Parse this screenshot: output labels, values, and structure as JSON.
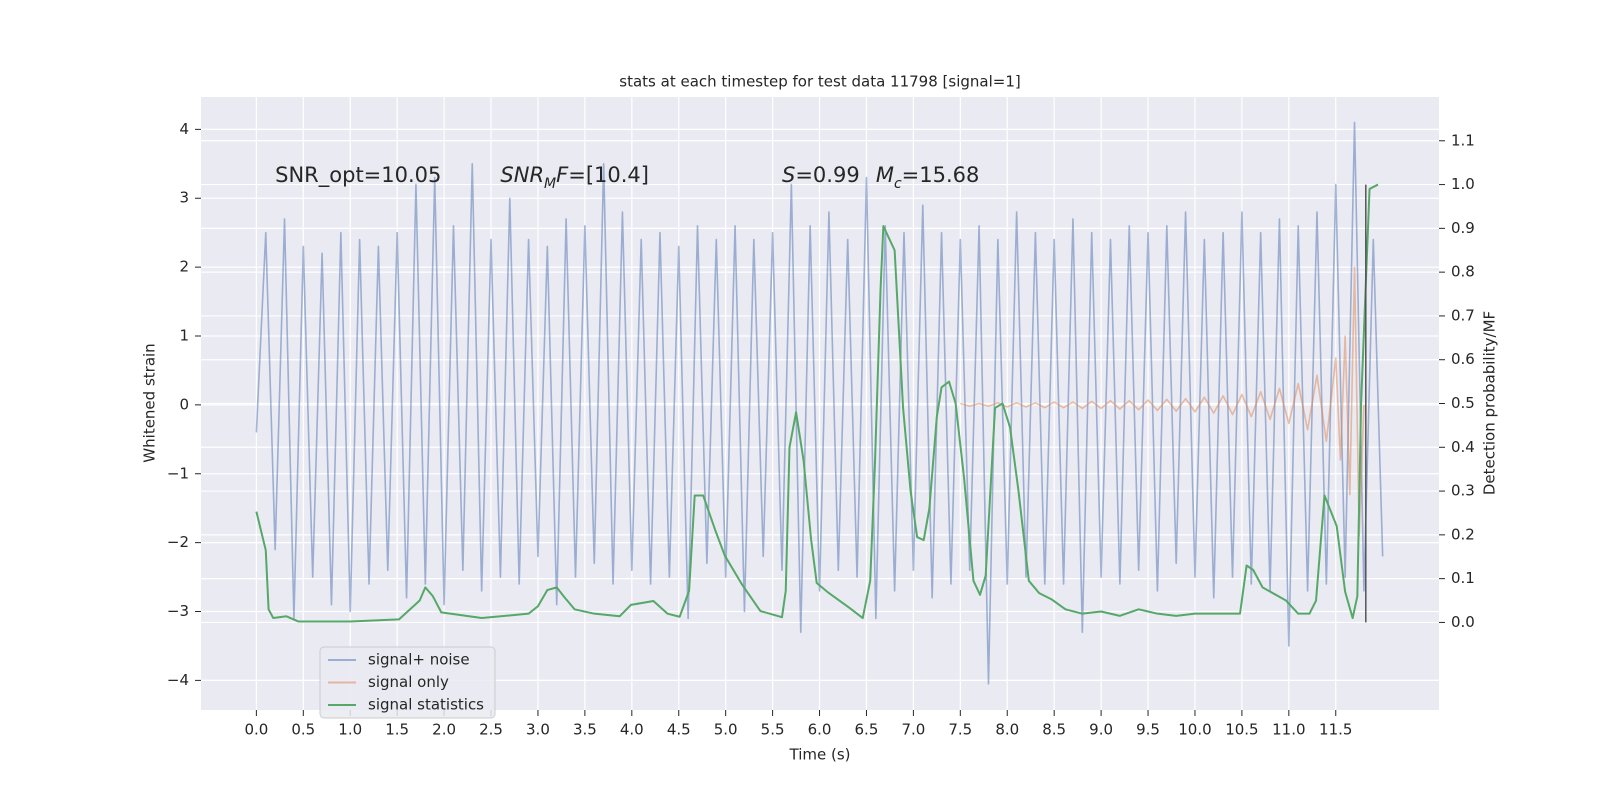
{
  "chart_data": {
    "type": "line",
    "title": "stats at each timestep for test data 11798 [signal=1]",
    "xlabel": "Time (s)",
    "ylabel": "Whitened strain",
    "y2label": "Detection probability/MF",
    "xlim": [
      -0.59,
      12.6
    ],
    "ylim": [
      -4.43,
      4.47
    ],
    "y2lim": [
      -0.2,
      1.2
    ],
    "xticks": [
      {
        "value": 0,
        "label": "0.0"
      },
      {
        "value": 0.5,
        "label": "0.5"
      },
      {
        "value": 1,
        "label": "1.0"
      },
      {
        "value": 1.5,
        "label": "1.5"
      },
      {
        "value": 2,
        "label": "2.0"
      },
      {
        "value": 2.5,
        "label": "2.5"
      },
      {
        "value": 3,
        "label": "3.0"
      },
      {
        "value": 3.5,
        "label": "3.5"
      },
      {
        "value": 4,
        "label": "4.0"
      },
      {
        "value": 4.5,
        "label": "4.5"
      },
      {
        "value": 5,
        "label": "5.0"
      },
      {
        "value": 5.5,
        "label": "5.5"
      },
      {
        "value": 6,
        "label": "6.0"
      },
      {
        "value": 6.5,
        "label": "6.5"
      },
      {
        "value": 7,
        "label": "7.0"
      },
      {
        "value": 7.5,
        "label": "7.5"
      },
      {
        "value": 8,
        "label": "8.0"
      },
      {
        "value": 8.5,
        "label": "8.5"
      },
      {
        "value": 9,
        "label": "9.0"
      },
      {
        "value": 9.5,
        "label": "9.5"
      },
      {
        "value": 10,
        "label": "10.0"
      },
      {
        "value": 10.5,
        "label": "10.5"
      },
      {
        "value": 11,
        "label": "11.0"
      },
      {
        "value": 11.5,
        "label": "11.5"
      }
    ],
    "yticks": [
      {
        "value": -4,
        "label": "−4"
      },
      {
        "value": -3,
        "label": "−3"
      },
      {
        "value": -2,
        "label": "−2"
      },
      {
        "value": -1,
        "label": "−1"
      },
      0,
      1,
      2,
      3,
      4
    ],
    "y2ticks": [
      {
        "value": 0,
        "label": "0.0"
      },
      {
        "value": 0.1,
        "label": "0.1"
      },
      {
        "value": 0.2,
        "label": "0.2"
      },
      {
        "value": 0.3,
        "label": "0.3"
      },
      {
        "value": 0.4,
        "label": "0.4"
      },
      {
        "value": 0.5,
        "label": "0.5"
      },
      {
        "value": 0.6,
        "label": "0.6"
      },
      {
        "value": 0.7,
        "label": "0.7"
      },
      {
        "value": 0.8,
        "label": "0.8"
      },
      {
        "value": 0.9,
        "label": "0.9"
      },
      {
        "value": 1,
        "label": "1.0"
      },
      {
        "value": 1.1,
        "label": "1.1"
      }
    ],
    "grid": true,
    "legend": "lower left",
    "annotations": [
      {
        "parts": [
          {
            "text": "SNR_opt=10.05"
          }
        ]
      },
      {
        "parts": [
          {
            "text": "SNR",
            "italic": true
          },
          {
            "text": "M",
            "italic": true,
            "sub": true
          },
          {
            "text": "F",
            "italic": true
          },
          {
            "text": "=[10.4]"
          }
        ]
      },
      {
        "parts": [
          {
            "text": "S",
            "italic": true
          },
          {
            "text": "=0.99"
          }
        ]
      },
      {
        "parts": [
          {
            "text": "M",
            "italic": true
          },
          {
            "text": "c",
            "italic": true,
            "sub": true
          },
          {
            "text": "=15.68"
          }
        ]
      }
    ],
    "vline": {
      "x": 11.82,
      "y2": [
        0,
        1.0
      ],
      "color": "#555555"
    },
    "series": [
      {
        "name": "signal+ noise",
        "color": "#4c72b0",
        "alpha": 0.5,
        "x": [
          0,
          0.1,
          0.2,
          0.3,
          0.4,
          0.5,
          0.6,
          0.7,
          0.8,
          0.9,
          1,
          1.1,
          1.2,
          1.3,
          1.4,
          1.5,
          1.6,
          1.7,
          1.8,
          1.9,
          2,
          2.1,
          2.2,
          2.3,
          2.4,
          2.5,
          2.6,
          2.7,
          2.8,
          2.9,
          3,
          3.1,
          3.2,
          3.3,
          3.4,
          3.5,
          3.6,
          3.7,
          3.8,
          3.9,
          4,
          4.1,
          4.2,
          4.3,
          4.4,
          4.5,
          4.6,
          4.7,
          4.8,
          4.9,
          5,
          5.1,
          5.2,
          5.3,
          5.4,
          5.5,
          5.6,
          5.7,
          5.8,
          5.9,
          6,
          6.1,
          6.2,
          6.3,
          6.4,
          6.5,
          6.6,
          6.7,
          6.8,
          6.9,
          7,
          7.1,
          7.2,
          7.3,
          7.4,
          7.5,
          7.6,
          7.7,
          7.8,
          7.9,
          8,
          8.1,
          8.2,
          8.3,
          8.4,
          8.5,
          8.6,
          8.7,
          8.8,
          8.9,
          9,
          9.1,
          9.2,
          9.3,
          9.4,
          9.5,
          9.6,
          9.7,
          9.8,
          9.9,
          10,
          10.1,
          10.2,
          10.3,
          10.4,
          10.5,
          10.6,
          10.7,
          10.8,
          10.9,
          11,
          11.1,
          11.2,
          11.3,
          11.4,
          11.5,
          11.6,
          11.7,
          11.8,
          11.9,
          12
        ],
        "values": [
          -0.4,
          2.5,
          -2.1,
          2.7,
          -3.1,
          2.3,
          -2.5,
          2.2,
          -2.9,
          2.5,
          -3.0,
          2.4,
          -2.6,
          2.3,
          -2.4,
          2.5,
          -2.8,
          3.2,
          -2.6,
          3.3,
          -2.9,
          2.6,
          -2.4,
          3.5,
          -2.7,
          2.4,
          -2.5,
          3.0,
          -2.6,
          2.4,
          -2.2,
          2.3,
          -2.9,
          2.7,
          -2.5,
          2.6,
          -2.3,
          3.5,
          -2.6,
          2.8,
          -2.4,
          2.4,
          -2.6,
          2.5,
          -2.5,
          2.3,
          -3.1,
          2.6,
          -2.3,
          2.4,
          -2.5,
          2.6,
          -3.0,
          2.4,
          -2.2,
          2.5,
          -2.4,
          3.2,
          -3.3,
          2.6,
          -2.7,
          2.8,
          -2.4,
          2.4,
          -2.5,
          3.3,
          -3.1,
          2.6,
          -2.7,
          2.5,
          -2.4,
          2.9,
          -2.8,
          2.5,
          -2.6,
          2.4,
          -2.4,
          2.6,
          -4.05,
          2.4,
          -2.6,
          2.8,
          -2.5,
          2.5,
          -2.6,
          2.4,
          -2.6,
          2.7,
          -3.3,
          2.5,
          -2.5,
          2.4,
          -2.6,
          2.6,
          -2.4,
          2.5,
          -2.7,
          2.6,
          -2.3,
          2.8,
          -2.5,
          2.4,
          -2.8,
          2.5,
          -2.5,
          2.8,
          -2.6,
          2.5,
          -2.7,
          2.7,
          -3.5,
          2.6,
          -2.7,
          2.8,
          -2.6,
          3.2,
          -2.5,
          4.1,
          -2.7,
          2.4,
          -2.2
        ]
      },
      {
        "name": "signal only",
        "color": "#dd8452",
        "alpha": 0.5,
        "x": [
          7.5,
          7.6,
          7.7,
          7.8,
          7.9,
          8,
          8.1,
          8.2,
          8.3,
          8.4,
          8.5,
          8.6,
          8.7,
          8.8,
          8.9,
          9,
          9.1,
          9.2,
          9.3,
          9.4,
          9.5,
          9.6,
          9.7,
          9.8,
          9.9,
          10,
          10.1,
          10.2,
          10.3,
          10.4,
          10.5,
          10.6,
          10.7,
          10.8,
          10.9,
          11,
          11.1,
          11.2,
          11.3,
          11.4,
          11.5,
          11.55,
          11.6,
          11.65,
          11.7,
          11.75,
          11.8
        ],
        "values": [
          0.02,
          -0.02,
          0.02,
          -0.02,
          0.03,
          -0.03,
          0.03,
          -0.03,
          0.03,
          -0.04,
          0.04,
          -0.04,
          0.04,
          -0.05,
          0.05,
          -0.05,
          0.06,
          -0.06,
          0.06,
          -0.07,
          0.07,
          -0.08,
          0.08,
          -0.09,
          0.09,
          -0.1,
          0.11,
          -0.12,
          0.13,
          -0.14,
          0.15,
          -0.17,
          0.19,
          -0.21,
          0.24,
          -0.27,
          0.31,
          -0.36,
          0.43,
          -0.53,
          0.68,
          -0.8,
          1.0,
          -1.3,
          2.0,
          -1.9,
          0.0
        ]
      },
      {
        "name": "signal statistics",
        "color": "#55a868",
        "alpha": 1,
        "axis": "y2",
        "x": [
          0,
          0.1,
          0.13,
          0.18,
          0.32,
          0.45,
          1.0,
          1.52,
          1.74,
          1.8,
          1.88,
          1.97,
          2.4,
          2.9,
          3.0,
          3.1,
          3.2,
          3.28,
          3.39,
          3.6,
          3.87,
          3.99,
          4.23,
          4.38,
          4.51,
          4.61,
          4.67,
          4.76,
          4.89,
          4.99,
          5.17,
          5.37,
          5.6,
          5.64,
          5.68,
          5.75,
          5.83,
          5.91,
          5.97,
          6.1,
          6.32,
          6.46,
          6.54,
          6.59,
          6.65,
          6.68,
          6.8,
          6.89,
          6.97,
          7.04,
          7.11,
          7.17,
          7.25,
          7.3,
          7.38,
          7.45,
          7.54,
          7.64,
          7.71,
          7.77,
          7.87,
          7.95,
          8.03,
          8.12,
          8.23,
          8.34,
          8.47,
          8.62,
          8.8,
          9.0,
          9.2,
          9.4,
          9.6,
          9.8,
          10.0,
          10.3,
          10.48,
          10.55,
          10.62,
          10.72,
          10.97,
          11.1,
          11.22,
          11.29,
          11.38,
          11.51,
          11.6,
          11.68,
          11.73,
          11.77,
          11.86,
          11.95
        ],
        "values": [
          0.253,
          0.165,
          0.03,
          0.01,
          0.014,
          0.002,
          0.002,
          0.007,
          0.05,
          0.08,
          0.06,
          0.023,
          0.01,
          0.02,
          0.037,
          0.074,
          0.08,
          0.058,
          0.03,
          0.02,
          0.014,
          0.04,
          0.049,
          0.02,
          0.013,
          0.072,
          0.29,
          0.29,
          0.21,
          0.153,
          0.088,
          0.026,
          0.012,
          0.072,
          0.4,
          0.48,
          0.37,
          0.19,
          0.09,
          0.067,
          0.033,
          0.01,
          0.095,
          0.36,
          0.76,
          0.905,
          0.85,
          0.49,
          0.3,
          0.195,
          0.188,
          0.26,
          0.47,
          0.537,
          0.55,
          0.5,
          0.33,
          0.095,
          0.063,
          0.107,
          0.49,
          0.5,
          0.445,
          0.3,
          0.095,
          0.067,
          0.053,
          0.03,
          0.02,
          0.025,
          0.015,
          0.03,
          0.02,
          0.015,
          0.02,
          0.02,
          0.02,
          0.13,
          0.12,
          0.08,
          0.05,
          0.02,
          0.02,
          0.05,
          0.29,
          0.22,
          0.07,
          0.01,
          0.06,
          0.5,
          0.99,
          1.0
        ]
      }
    ]
  }
}
